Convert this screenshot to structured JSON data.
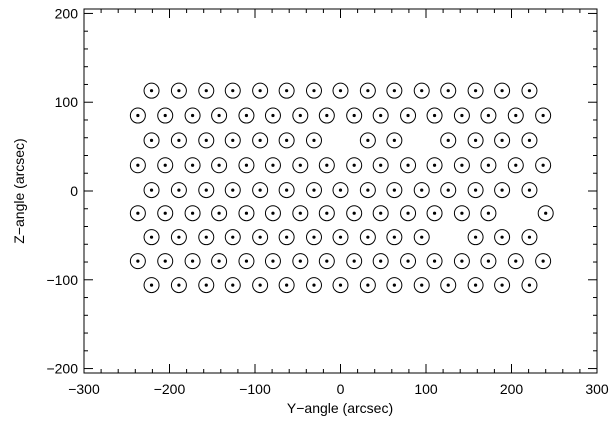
{
  "chart_data": {
    "type": "scatter",
    "title": "",
    "xlabel": "Y−angle (arcsec)",
    "ylabel": "Z−angle (arcsec)",
    "xlim": [
      -300,
      300
    ],
    "ylim": [
      -205,
      205
    ],
    "xticks": [
      -300,
      -200,
      -100,
      0,
      100,
      200,
      300
    ],
    "xtick_labels": [
      "−300",
      "−200",
      "−100",
      "0",
      "100",
      "200",
      "300"
    ],
    "yticks": [
      -200,
      -100,
      0,
      100,
      200
    ],
    "ytick_labels": [
      "−200",
      "−100",
      "0",
      "100",
      "200"
    ],
    "grid": false,
    "marker": "circle-with-center-dot",
    "rows": [
      {
        "y": 113,
        "x": [
          -221,
          -189,
          -157,
          -126,
          -94,
          -63,
          -31,
          0,
          32,
          63,
          95,
          126,
          158,
          189,
          221
        ]
      },
      {
        "y": 85,
        "x": [
          -237,
          -205,
          -173,
          -142,
          -110,
          -79,
          -47,
          -16,
          16,
          47,
          79,
          110,
          142,
          173,
          205,
          237
        ]
      },
      {
        "y": 57,
        "x": [
          -221,
          -189,
          -157,
          -126,
          -94,
          -63,
          -31,
          32,
          63,
          126,
          158,
          189,
          221
        ]
      },
      {
        "y": 29,
        "x": [
          -237,
          -205,
          -173,
          -142,
          -110,
          -79,
          -47,
          -16,
          16,
          47,
          79,
          110,
          142,
          173,
          205,
          237
        ]
      },
      {
        "y": 1,
        "x": [
          -221,
          -189,
          -157,
          -126,
          -94,
          -63,
          -31,
          0,
          32,
          63,
          95,
          126,
          158,
          189,
          221
        ]
      },
      {
        "y": -25,
        "x": [
          -237,
          -205,
          -173,
          -142,
          -110,
          -79,
          -47,
          -16,
          16,
          47,
          79,
          110,
          142,
          173,
          240
        ]
      },
      {
        "y": -52,
        "x": [
          -221,
          -189,
          -157,
          -126,
          -94,
          -63,
          -31,
          0,
          32,
          63,
          95,
          158,
          189,
          221
        ]
      },
      {
        "y": -79,
        "x": [
          -237,
          -205,
          -173,
          -142,
          -110,
          -79,
          -47,
          -16,
          16,
          47,
          79,
          110,
          142,
          173,
          205,
          237
        ]
      },
      {
        "y": -106,
        "x": [
          -221,
          -189,
          -157,
          -126,
          -94,
          -63,
          -31,
          0,
          32,
          63,
          95,
          126,
          158,
          189,
          221
        ]
      }
    ]
  }
}
